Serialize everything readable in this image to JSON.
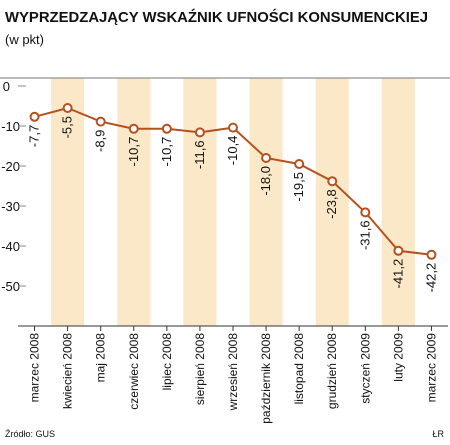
{
  "chart_data": {
    "type": "line",
    "title": "WYPRZEDZAJĄCY WSKAŹNIK UFNOŚCI KONSUMENCKIEJ",
    "subtitle": "(w pkt)",
    "categories": [
      "marzec 2008",
      "kwiecień 2008",
      "maj 2008",
      "czerwiec 2008",
      "lipiec 2008",
      "sierpień 2008",
      "wrzesień 2008",
      "październik 2008",
      "listopad 2008",
      "grudzień 2008",
      "styczeń 2009",
      "luty 2009",
      "marzec 2009"
    ],
    "values": [
      -7.7,
      -5.5,
      -8.9,
      -10.7,
      -10.7,
      -11.6,
      -10.4,
      -18.0,
      -19.5,
      -23.8,
      -31.6,
      -41.2,
      -42.2
    ],
    "value_labels": [
      "-7,7",
      "-5,5",
      "-8,9",
      "-10,7",
      "-10,7",
      "-11,6",
      "-10,4",
      "-18,0",
      "-19,5",
      "-23,8",
      "-31,6",
      "-41,2",
      "-42,2"
    ],
    "color": "#b5501f",
    "ylim": [
      -60,
      2
    ],
    "yticks": [
      0,
      -10,
      -20,
      -30,
      -40,
      -50
    ],
    "grid": false,
    "source": "Źródło: GUS",
    "credit": "ŁR"
  }
}
